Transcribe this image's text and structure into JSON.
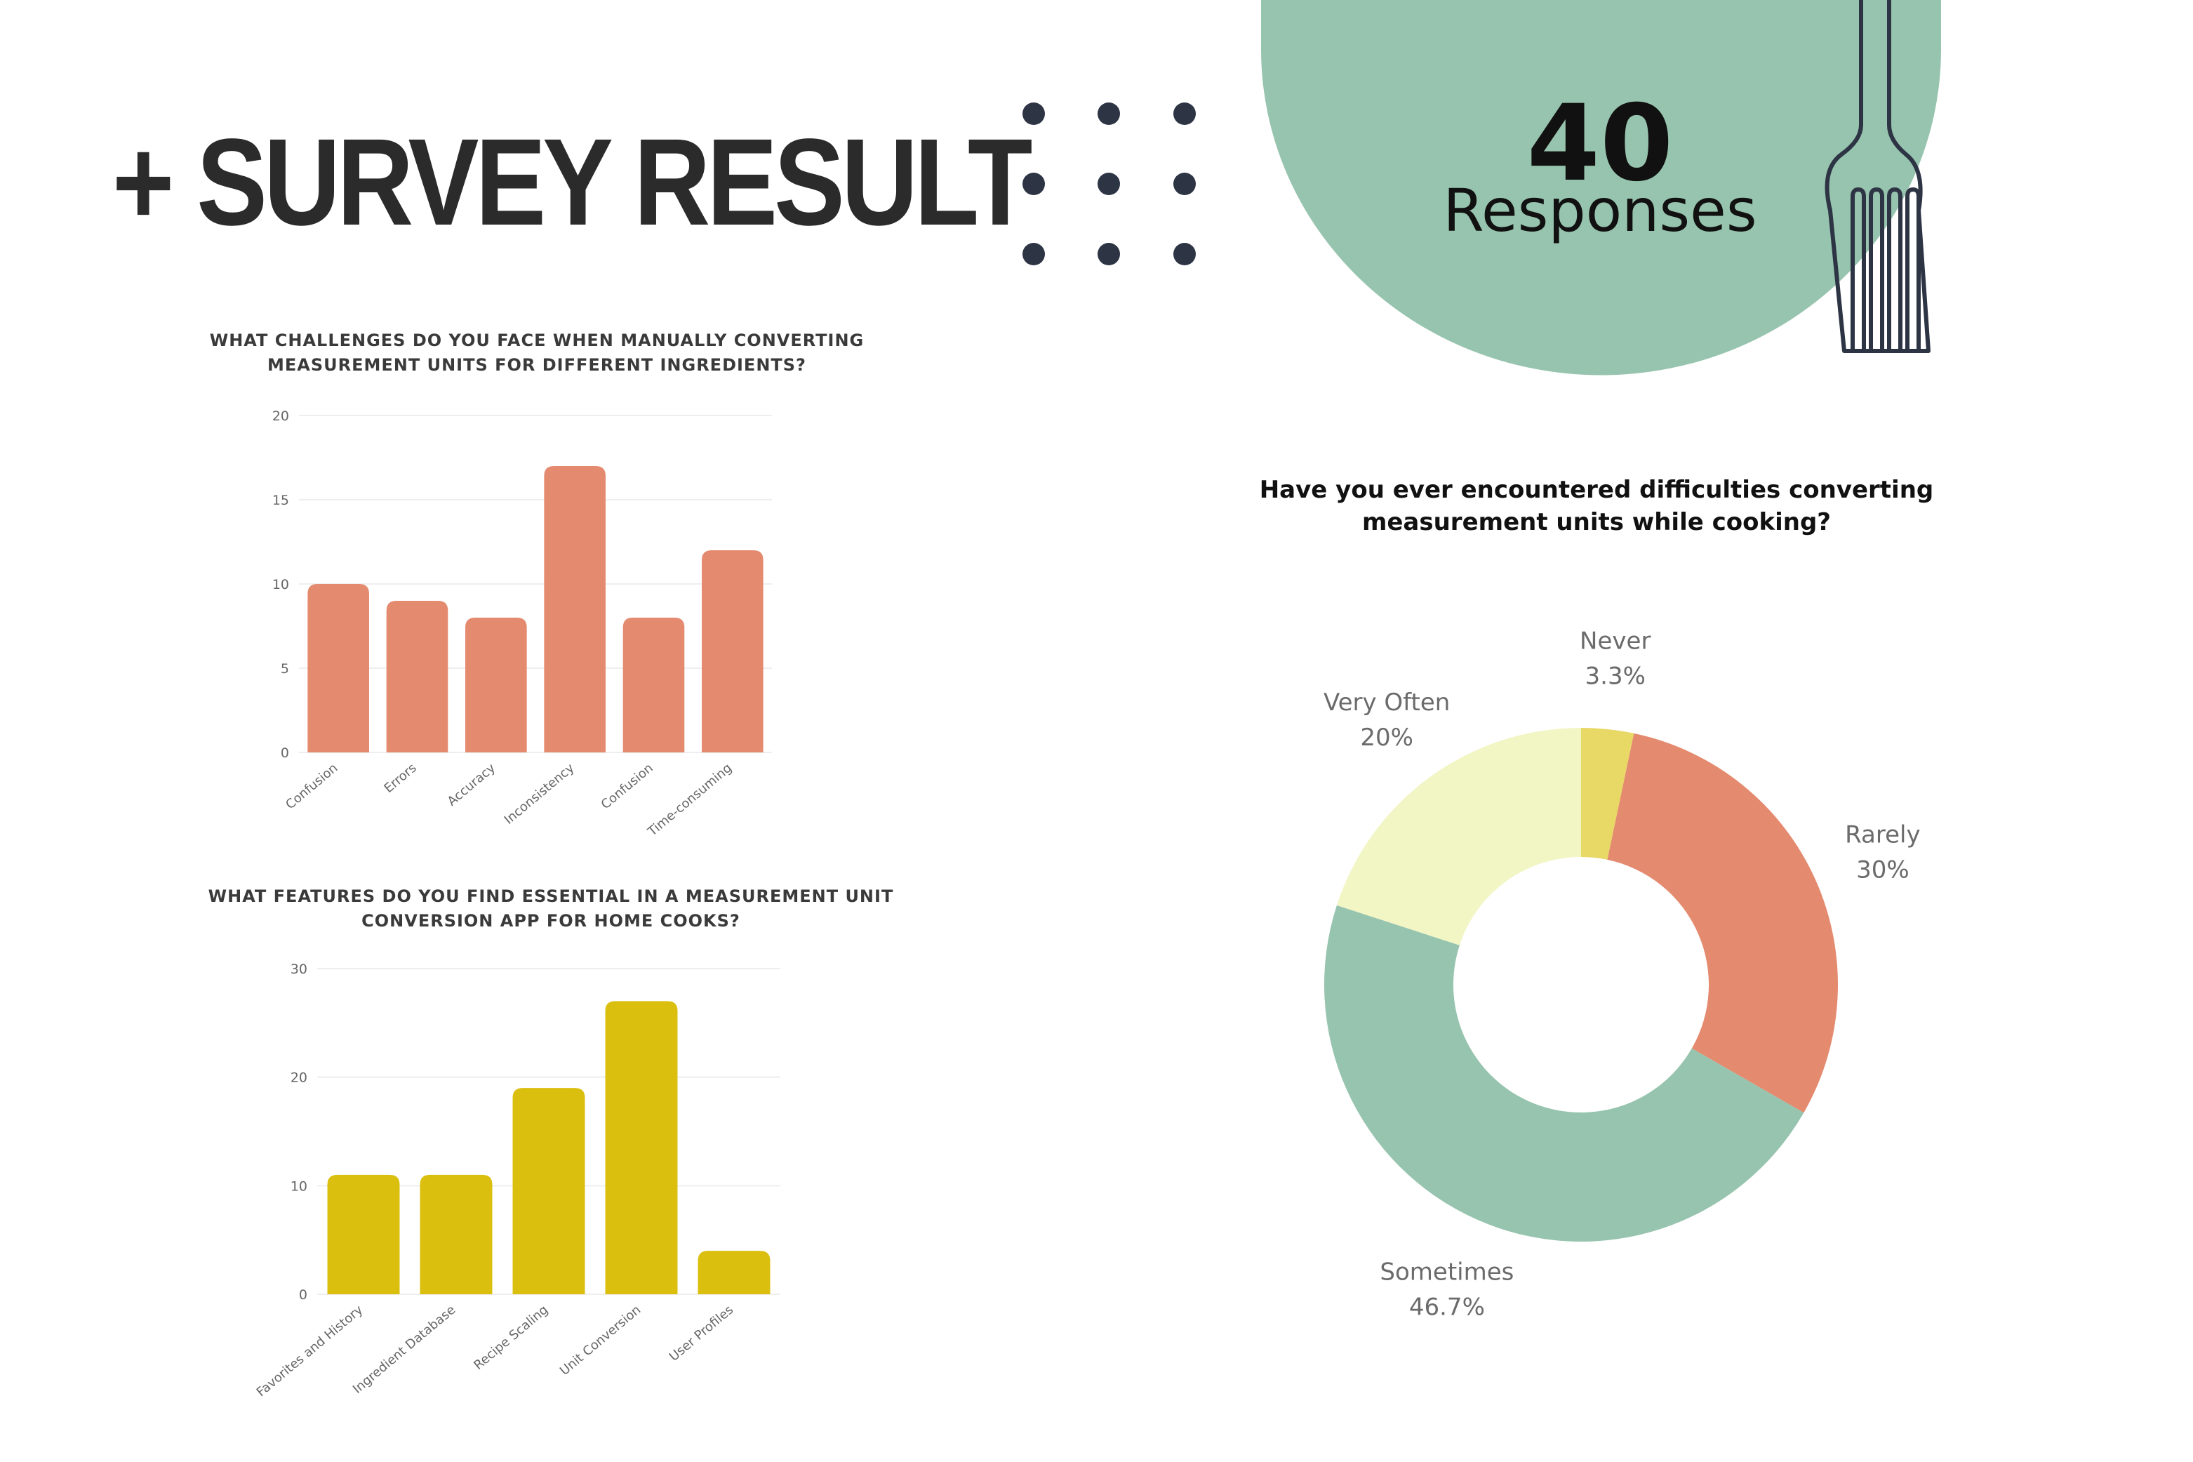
{
  "header": {
    "title": "+ SURVEY RESULT",
    "responses_count": "40",
    "responses_label": "Responses"
  },
  "colors": {
    "title": "#2b2b2b",
    "dots": "#2d3444",
    "sage": "#97c4ae",
    "salmon": "#e48a6f",
    "mustard": "#dbbf0f",
    "pale_yellow": "#f2f5c4",
    "yellow": "#e8d866",
    "fork": "#2d3444"
  },
  "chart_data": [
    {
      "type": "bar",
      "title": "WHAT CHALLENGES DO YOU FACE WHEN MANUALLY CONVERTING MEASUREMENT UNITS FOR DIFFERENT INGREDIENTS?",
      "title_lines": [
        "WHAT CHALLENGES DO YOU FACE WHEN MANUALLY CONVERTING",
        "MEASUREMENT UNITS FOR DIFFERENT INGREDIENTS?"
      ],
      "categories": [
        "Confusion",
        "Errors",
        "Accuracy",
        "Inconsistency",
        "Confusion",
        "Time-consuming"
      ],
      "values": [
        10,
        9,
        8,
        17,
        8,
        12
      ],
      "ylim": [
        0,
        20
      ],
      "yticks": [
        0,
        5,
        10,
        15,
        20
      ],
      "color": "#e48a6f",
      "grid": true
    },
    {
      "type": "bar",
      "title": "WHAT FEATURES DO YOU FIND ESSENTIAL IN A MEASUREMENT UNIT CONVERSION APP FOR HOME COOKS?",
      "title_lines": [
        "WHAT FEATURES DO YOU FIND ESSENTIAL IN A MEASUREMENT UNIT",
        "CONVERSION APP FOR HOME COOKS?"
      ],
      "categories": [
        "Favorites and History",
        "Ingredient Database",
        "Recipe Scaling",
        "Unit Conversion",
        "User Profiles"
      ],
      "values": [
        11,
        11,
        19,
        27,
        4
      ],
      "ylim": [
        0,
        30
      ],
      "yticks": [
        0,
        10,
        20,
        30
      ],
      "color": "#dbbf0f",
      "grid": true
    },
    {
      "type": "pie",
      "title": "Have you ever encountered difficulties converting measurement units while cooking?",
      "title_lines": [
        "Have you ever encountered difficulties converting",
        "measurement units while cooking?"
      ],
      "donut": true,
      "slices": [
        {
          "label": "Never",
          "value": 3.3,
          "display": "3.3%",
          "color": "#e8d866"
        },
        {
          "label": "Rarely",
          "value": 30,
          "display": "30%",
          "color": "#e48a6f"
        },
        {
          "label": "Sometimes",
          "value": 46.7,
          "display": "46.7%",
          "color": "#97c4ae"
        },
        {
          "label": "Very Often",
          "value": 20,
          "display": "20%",
          "color": "#f2f5c4"
        }
      ]
    }
  ]
}
